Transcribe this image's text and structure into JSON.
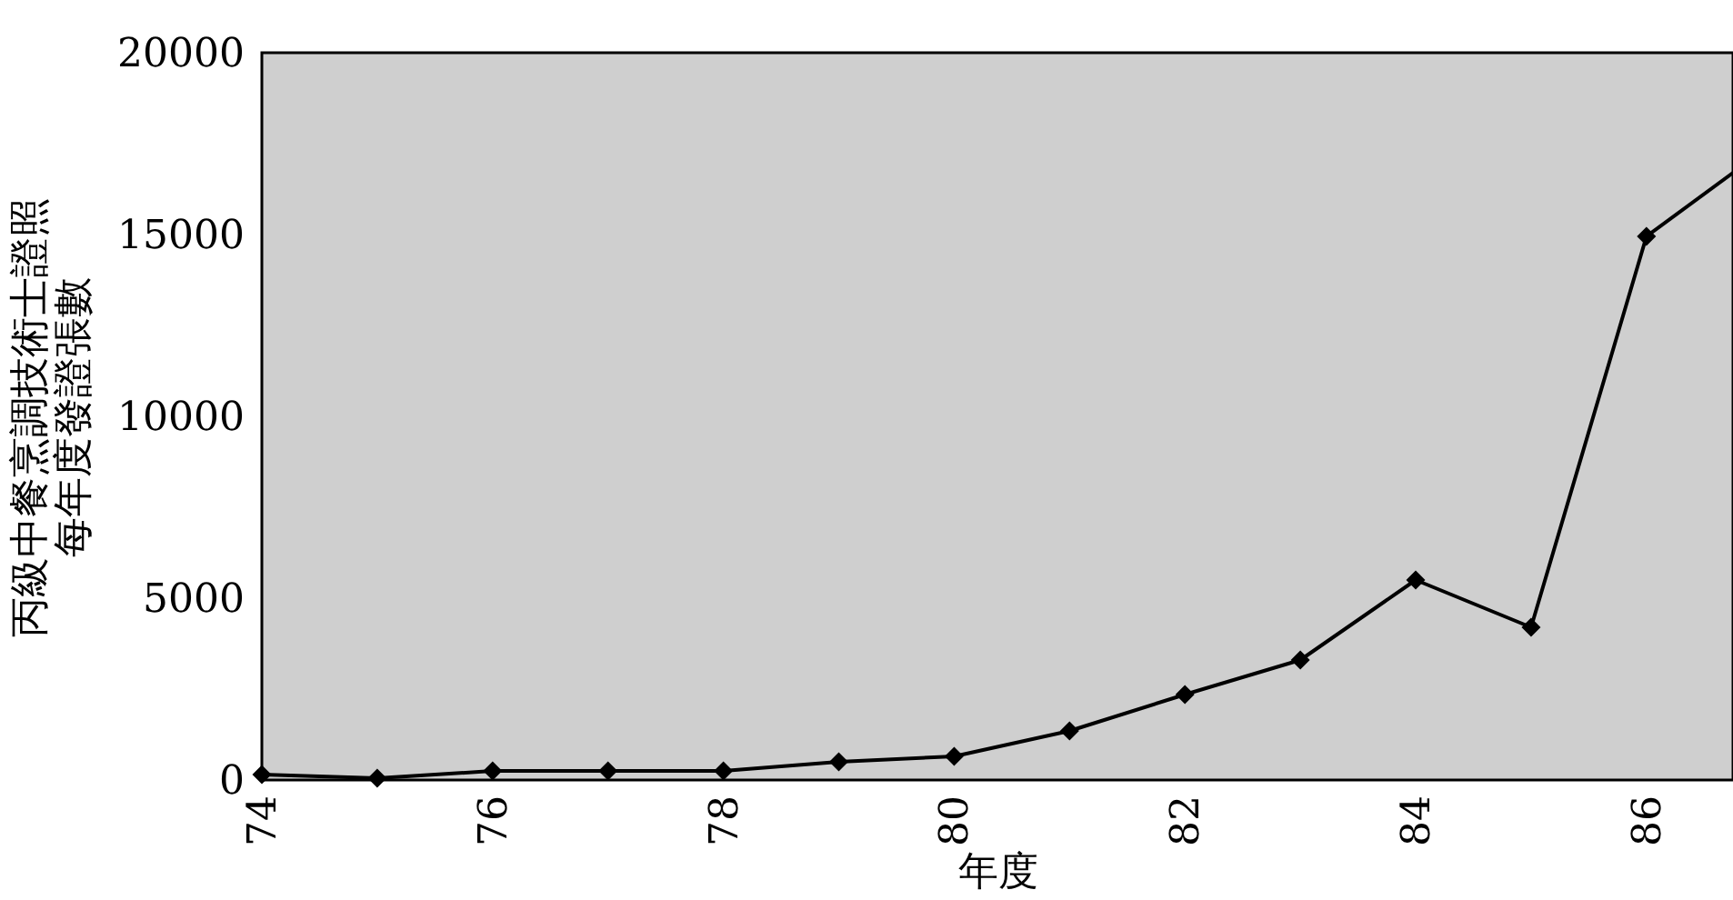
{
  "chart_data": {
    "type": "line",
    "xlabel": "年度",
    "ylabel": "丙級中餐烹調技術士證照每年度發證張數",
    "series": [
      {
        "x": [
          74,
          75,
          76,
          77,
          78,
          79,
          80,
          81,
          82,
          83,
          84,
          85,
          86
        ],
        "values": [
          150,
          50,
          250,
          250,
          250,
          500,
          650,
          1350,
          2350,
          3300,
          5500,
          4200,
          14950
        ],
        "color": "#000000",
        "marker": "diamond"
      },
      {
        "type": "line",
        "x": [
          86,
          86.75
        ],
        "values": [
          14950,
          16700
        ],
        "color": "#000000",
        "marker": "none"
      }
    ],
    "xlim": [
      74,
      86.75
    ],
    "xticks": [
      74,
      76,
      78,
      80,
      82,
      84,
      86
    ],
    "ylim": [
      0,
      20000
    ],
    "yticks": [
      0,
      5000,
      10000,
      15000,
      20000
    ],
    "line_style": "solid"
  }
}
